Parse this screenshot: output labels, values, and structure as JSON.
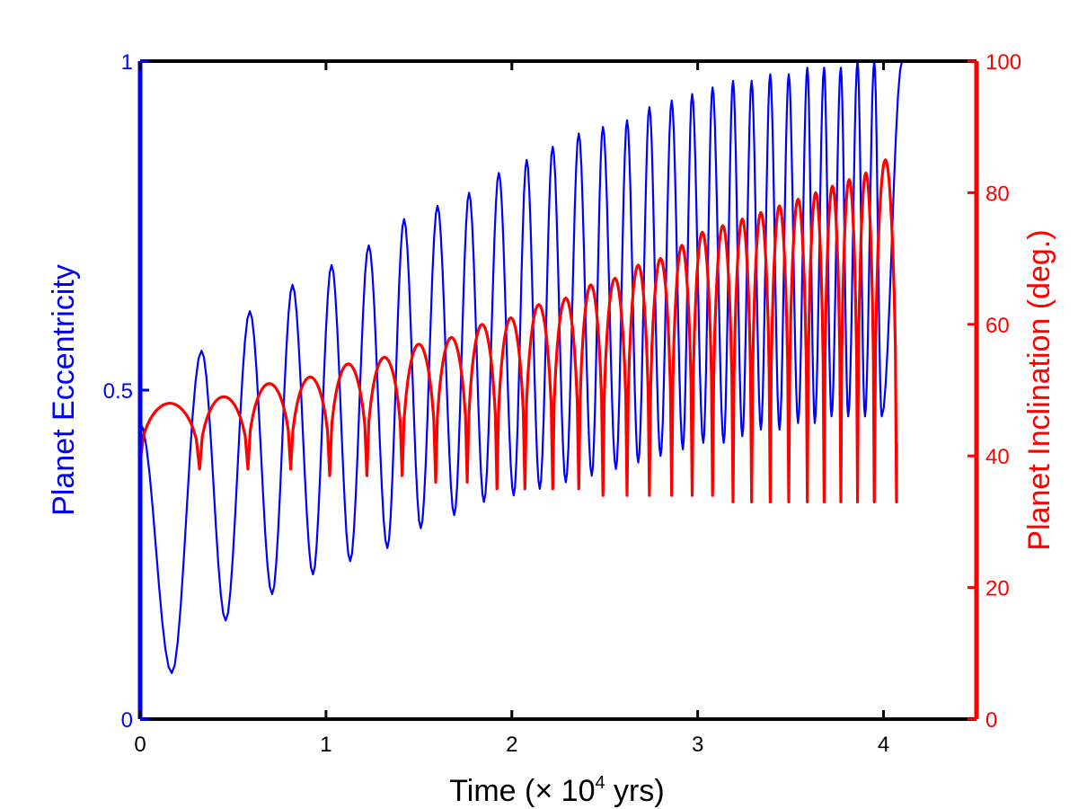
{
  "chart_data": {
    "type": "line",
    "title": "",
    "xlabel": "Time (× 10",
    "xlabel_exponent": "4",
    "xlabel_suffix": " yrs)",
    "ylabel_left": "Planet Eccentricity",
    "ylabel_right": "Planet Inclination (deg.)",
    "xlim": [
      0,
      4.5
    ],
    "ylim_left": [
      0,
      1
    ],
    "ylim_right": [
      0,
      100
    ],
    "x_ticks": [
      "0",
      "1",
      "2",
      "3",
      "4"
    ],
    "x_tick_values": [
      0,
      1,
      2,
      3,
      4
    ],
    "y_left_ticks": [
      "0",
      "0.5",
      "1"
    ],
    "y_left_tick_values": [
      0,
      0.5,
      1
    ],
    "y_right_ticks": [
      "0",
      "20",
      "40",
      "60",
      "80",
      "100"
    ],
    "y_right_tick_values": [
      0,
      20,
      40,
      60,
      80,
      100
    ],
    "grid": false,
    "series": [
      {
        "name": "Planet Eccentricity",
        "axis": "left",
        "color": "#0000ff",
        "x_end": 4.1,
        "peaks": [
          [
            0,
            0.45
          ],
          [
            0.33,
            0.56
          ],
          [
            0.59,
            0.62
          ],
          [
            0.82,
            0.66
          ],
          [
            1.03,
            0.69
          ],
          [
            1.23,
            0.72
          ],
          [
            1.42,
            0.76
          ],
          [
            1.6,
            0.78
          ],
          [
            1.77,
            0.8
          ],
          [
            1.93,
            0.83
          ],
          [
            2.08,
            0.85
          ],
          [
            2.22,
            0.87
          ],
          [
            2.36,
            0.89
          ],
          [
            2.49,
            0.9
          ],
          [
            2.62,
            0.91
          ],
          [
            2.74,
            0.93
          ],
          [
            2.86,
            0.94
          ],
          [
            2.97,
            0.95
          ],
          [
            3.08,
            0.96
          ],
          [
            3.19,
            0.97
          ],
          [
            3.29,
            0.97
          ],
          [
            3.39,
            0.98
          ],
          [
            3.49,
            0.98
          ],
          [
            3.59,
            0.99
          ],
          [
            3.68,
            0.99
          ],
          [
            3.77,
            0.99
          ],
          [
            3.86,
            1.0
          ],
          [
            3.95,
            1.0
          ],
          [
            4.1,
            1.0
          ]
        ],
        "troughs": [
          [
            0.17,
            0.07
          ],
          [
            0.46,
            0.15
          ],
          [
            0.71,
            0.19
          ],
          [
            0.93,
            0.22
          ],
          [
            1.13,
            0.24
          ],
          [
            1.33,
            0.26
          ],
          [
            1.51,
            0.29
          ],
          [
            1.69,
            0.31
          ],
          [
            1.85,
            0.33
          ],
          [
            2.01,
            0.34
          ],
          [
            2.15,
            0.35
          ],
          [
            2.29,
            0.36
          ],
          [
            2.43,
            0.37
          ],
          [
            2.56,
            0.38
          ],
          [
            2.68,
            0.39
          ],
          [
            2.8,
            0.4
          ],
          [
            2.92,
            0.41
          ],
          [
            3.03,
            0.42
          ],
          [
            3.14,
            0.42
          ],
          [
            3.24,
            0.43
          ],
          [
            3.34,
            0.44
          ],
          [
            3.44,
            0.44
          ],
          [
            3.54,
            0.45
          ],
          [
            3.63,
            0.45
          ],
          [
            3.72,
            0.46
          ],
          [
            3.81,
            0.46
          ],
          [
            3.9,
            0.46
          ],
          [
            3.99,
            0.46
          ]
        ]
      },
      {
        "name": "Planet Inclination",
        "axis": "right",
        "color": "#ff0000",
        "x_end": 4.07,
        "start_value": 39,
        "end_value": 42,
        "arches": [
          {
            "x0": 0,
            "x1": 0.32,
            "peak": 48,
            "trough": 38
          },
          {
            "x0": 0.32,
            "x1": 0.58,
            "peak": 49,
            "trough": 38
          },
          {
            "x0": 0.58,
            "x1": 0.81,
            "peak": 51,
            "trough": 38
          },
          {
            "x0": 0.81,
            "x1": 1.02,
            "peak": 52,
            "trough": 37
          },
          {
            "x0": 1.02,
            "x1": 1.22,
            "peak": 54,
            "trough": 37
          },
          {
            "x0": 1.22,
            "x1": 1.41,
            "peak": 55,
            "trough": 37
          },
          {
            "x0": 1.41,
            "x1": 1.59,
            "peak": 57,
            "trough": 36
          },
          {
            "x0": 1.59,
            "x1": 1.76,
            "peak": 58,
            "trough": 36
          },
          {
            "x0": 1.76,
            "x1": 1.92,
            "peak": 60,
            "trough": 35
          },
          {
            "x0": 1.92,
            "x1": 2.07,
            "peak": 61,
            "trough": 35
          },
          {
            "x0": 2.07,
            "x1": 2.22,
            "peak": 63,
            "trough": 35
          },
          {
            "x0": 2.22,
            "x1": 2.36,
            "peak": 64,
            "trough": 35
          },
          {
            "x0": 2.36,
            "x1": 2.49,
            "peak": 66,
            "trough": 34
          },
          {
            "x0": 2.49,
            "x1": 2.62,
            "peak": 67,
            "trough": 34
          },
          {
            "x0": 2.62,
            "x1": 2.74,
            "peak": 69,
            "trough": 34
          },
          {
            "x0": 2.74,
            "x1": 2.86,
            "peak": 70,
            "trough": 34
          },
          {
            "x0": 2.86,
            "x1": 2.97,
            "peak": 72,
            "trough": 34
          },
          {
            "x0": 2.97,
            "x1": 3.08,
            "peak": 74,
            "trough": 34
          },
          {
            "x0": 3.08,
            "x1": 3.19,
            "peak": 75,
            "trough": 33
          },
          {
            "x0": 3.19,
            "x1": 3.29,
            "peak": 76,
            "trough": 33
          },
          {
            "x0": 3.29,
            "x1": 3.39,
            "peak": 77,
            "trough": 33
          },
          {
            "x0": 3.39,
            "x1": 3.49,
            "peak": 78,
            "trough": 33
          },
          {
            "x0": 3.49,
            "x1": 3.59,
            "peak": 79,
            "trough": 33
          },
          {
            "x0": 3.59,
            "x1": 3.68,
            "peak": 80,
            "trough": 33
          },
          {
            "x0": 3.68,
            "x1": 3.77,
            "peak": 81,
            "trough": 33
          },
          {
            "x0": 3.77,
            "x1": 3.86,
            "peak": 82,
            "trough": 33
          },
          {
            "x0": 3.86,
            "x1": 3.95,
            "peak": 83,
            "trough": 33
          },
          {
            "x0": 3.95,
            "x1": 4.07,
            "peak": 85,
            "trough": 33
          }
        ]
      }
    ]
  }
}
